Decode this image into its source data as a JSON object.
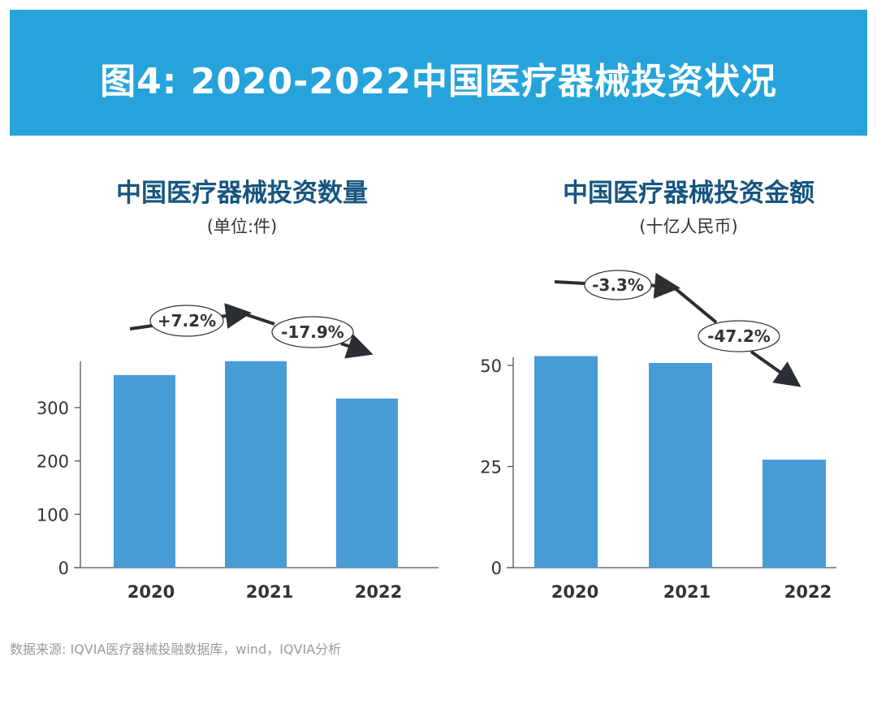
{
  "title": "图4: 2020-2022中国医疗器械投资状况",
  "source": "数据来源: IQVIA医疗器械投融数据库，wind，IQVIA分析",
  "colors": {
    "banner": "#27a3dc",
    "bar": "#479cd6",
    "subtitle": "#17557f",
    "arrow": "#2b2f33"
  },
  "chart_data": [
    {
      "type": "bar",
      "title": "中国医疗器械投资数量",
      "unit": "(单位:件)",
      "categories": [
        "2020",
        "2021",
        "2022"
      ],
      "values": [
        361,
        387,
        317
      ],
      "ylim": [
        0,
        385
      ],
      "yticks": [
        0,
        100,
        200,
        300
      ],
      "grid": false,
      "annotations": [
        "+7.2%",
        "-17.9%"
      ]
    },
    {
      "type": "bar",
      "title": "中国医疗器械投资金额",
      "unit": "(十亿人民币)",
      "categories": [
        "2020",
        "2021",
        "2022"
      ],
      "values": [
        52.3,
        50.6,
        26.7
      ],
      "ylim": [
        0,
        50
      ],
      "yticks": [
        0,
        25,
        50
      ],
      "grid": false,
      "annotations": [
        "-3.3%",
        "-47.2%"
      ]
    }
  ]
}
